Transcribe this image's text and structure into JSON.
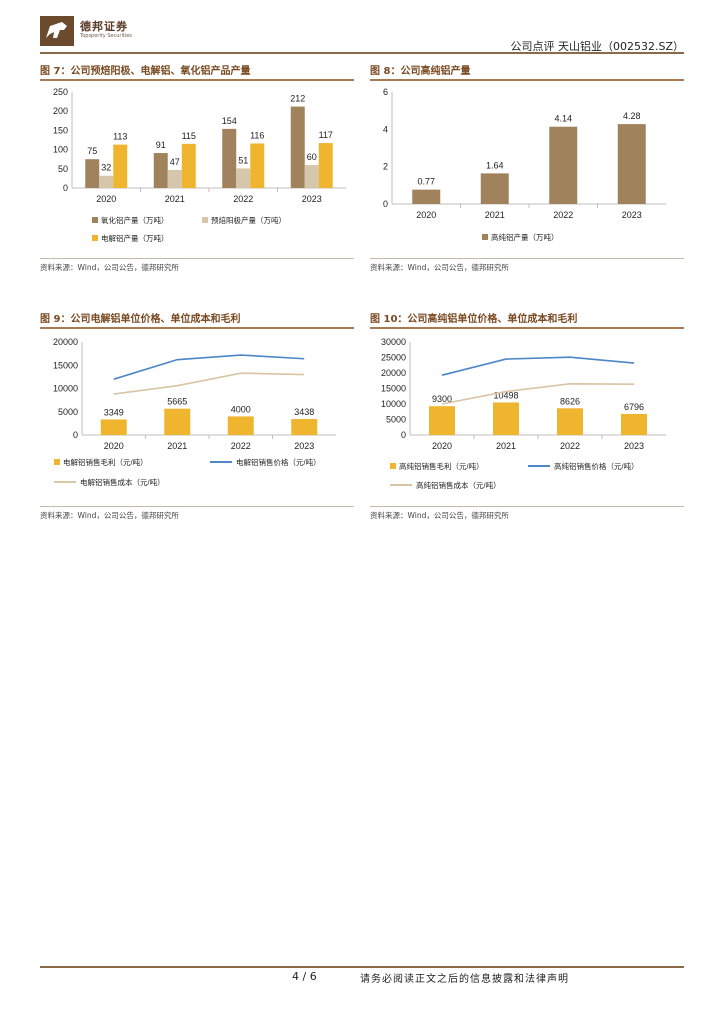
{
  "header": {
    "logo_text": "德邦证券",
    "logo_subtext": "Topsperity Securities",
    "right_text": "公司点评  天山铝业（002532.SZ）"
  },
  "charts": {
    "fig7": {
      "title": "图 7：公司预焙阳极、电解铝、氧化铝产品产量",
      "source": "资料来源：Wind，公司公告，德邦研究所",
      "chart_data": {
        "type": "bar",
        "categories": [
          "2020",
          "2021",
          "2022",
          "2023"
        ],
        "series": [
          {
            "name": "氧化铝产量（万吨）",
            "values": [
              75,
              91,
              154,
              212
            ],
            "color": "#a0825d"
          },
          {
            "name": "预焙阳极产量（万吨）",
            "values": [
              32,
              47,
              51,
              60
            ],
            "color": "#d6c7ac"
          },
          {
            "name": "电解铝产量（万吨）",
            "values": [
              113,
              115,
              116,
              117
            ],
            "color": "#f0b52e"
          }
        ],
        "yticks": [
          "0",
          "50",
          "100",
          "150",
          "200",
          "250"
        ],
        "ylim": [
          0,
          250
        ],
        "grid": false,
        "legend": "bottom"
      }
    },
    "fig8": {
      "title": "图 8：公司高纯铝产量",
      "source": "资料来源：Wind，公司公告，德邦研究所",
      "chart_data": {
        "type": "bar",
        "categories": [
          "2020",
          "2021",
          "2022",
          "2023"
        ],
        "series": [
          {
            "name": "高纯铝产量（万吨）",
            "values": [
              0.77,
              1.64,
              4.14,
              4.28
            ],
            "labels": [
              "0.77",
              "1.64",
              "4.14",
              "4.28"
            ],
            "color": "#a0825d"
          }
        ],
        "yticks": [
          "0",
          "2",
          "4",
          "6"
        ],
        "ylim": [
          0,
          6
        ],
        "grid": false,
        "legend": "bottom"
      }
    },
    "fig9": {
      "title": "图 9：公司电解铝单位价格、单位成本和毛利",
      "source": "资料来源：Wind，公司公告，德邦研究所",
      "chart_data": {
        "type": "bar",
        "categories": [
          "2020",
          "2021",
          "2022",
          "2023"
        ],
        "bars": {
          "name": "电解铝销售毛利（元/吨）",
          "values": [
            3349,
            5665,
            4000,
            3438
          ],
          "color": "#f0b52e"
        },
        "lines": [
          {
            "name": "电解铝销售价格（元/吨）",
            "values": [
              12000,
              16200,
              17200,
              16400
            ],
            "color": "#4a86c8"
          },
          {
            "name": "电解铝销售成本（元/吨）",
            "values": [
              8800,
              10600,
              13300,
              13000
            ],
            "color": "#d9c4a3"
          }
        ],
        "yticks": [
          "0",
          "5000",
          "10000",
          "15000",
          "20000"
        ],
        "ylim": [
          0,
          20000
        ],
        "grid": false,
        "legend": "bottom"
      }
    },
    "fig10": {
      "title": "图 10：公司高纯铝单位价格、单位成本和毛利",
      "source": "资料来源：Wind，公司公告，德邦研究所",
      "chart_data": {
        "type": "bar",
        "categories": [
          "2020",
          "2021",
          "2022",
          "2023"
        ],
        "bars": {
          "name": "高纯铝销售毛利（元/吨）",
          "values": [
            9300,
            10498,
            8626,
            6796
          ],
          "color": "#f0b52e"
        },
        "lines": [
          {
            "name": "高纯铝销售价格（元/吨）",
            "values": [
              19300,
              24500,
              25100,
              23200
            ],
            "color": "#4a86c8"
          },
          {
            "name": "高纯铝销售成本（元/吨）",
            "values": [
              10000,
              14000,
              16500,
              16400
            ],
            "color": "#d9c4a3"
          }
        ],
        "yticks": [
          "0",
          "5000",
          "10000",
          "15000",
          "20000",
          "25000",
          "30000"
        ],
        "ylim": [
          0,
          30000
        ],
        "grid": false,
        "legend": "bottom"
      }
    }
  },
  "footer": {
    "page": "4 / 6",
    "disclaimer": "请务必阅读正文之后的信息披露和法律声明"
  }
}
